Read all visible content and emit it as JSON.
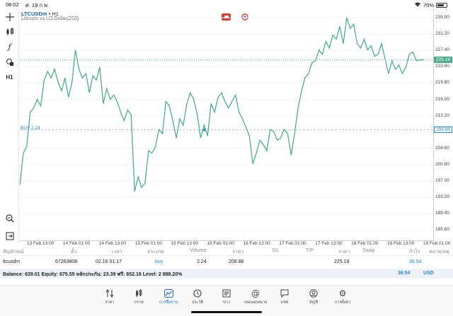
{
  "status_bar": {
    "time": "08:02",
    "date": "ศ. 19 ก.พ.",
    "battery": "70%"
  },
  "symbol": {
    "name": "LTCUSDm",
    "timeframe": "• H1",
    "description": "Litecoin vs US Dollar(250)"
  },
  "toolbar": {
    "sell_icon": "sell-button-icon",
    "buy_icon": "buy-button-icon"
  },
  "sidebar_icons": [
    "crosshair-icon",
    "chart-type-icon",
    "indicator-f-icon",
    "objects-icon",
    "timeframe-H1-label",
    "zoom-icon",
    "export-icon"
  ],
  "sidebar_timeframe": "H1",
  "chart_data": {
    "type": "line",
    "title": "",
    "y_ticks": [
      "235.00",
      "231.20",
      "227.40",
      "223.60",
      "219.80",
      "216.00",
      "212.20",
      "208.40",
      "204.60",
      "200.80",
      "197.00",
      "193.20",
      "189.40",
      "185.60"
    ],
    "x_ticks": [
      "13 Feb 13:00",
      "14 Feb 01:00",
      "14 Feb 13:00",
      "15 Feb 01:00",
      "15 Feb 13:00",
      "16 Feb 01:00",
      "16 Feb 13:00",
      "17 Feb 01:00",
      "17 Feb 13:00",
      "18 Feb 01:00",
      "18 Feb 13:00",
      "19 Feb 01:00"
    ],
    "current_price": "225.19",
    "open_price": "208.88",
    "buy_line_label": "BUY 2.24",
    "ylim": [
      183.0,
      237.0
    ],
    "line_color": "#4caf8a",
    "values": [
      196.0,
      203.5,
      205.0,
      213.0,
      214.0,
      216.0,
      214.5,
      220.5,
      222.5,
      221.0,
      223.0,
      220.0,
      218.0,
      221.0,
      216.5,
      220.0,
      227.5,
      223.0,
      221.0,
      222.0,
      217.5,
      221.5,
      220.5,
      223.5,
      215.0,
      218.5,
      216.0,
      217.0,
      215.5,
      213.0,
      211.0,
      213.5,
      212.5,
      194.5,
      198.0,
      195.5,
      196.5,
      204.0,
      203.5,
      205.0,
      209.0,
      208.0,
      215.5,
      214.5,
      211.0,
      207.0,
      211.5,
      210.0,
      215.0,
      217.5,
      216.0,
      212.5,
      207.0,
      210.0,
      207.5,
      215.0,
      213.0,
      216.5,
      217.5,
      215.5,
      214.0,
      215.5,
      217.0,
      213.0,
      211.5,
      209.5,
      207.5,
      201.0,
      203.5,
      206.5,
      205.5,
      204.0,
      209.0,
      208.5,
      206.5,
      207.0,
      209.0,
      208.0,
      203.0,
      208.0,
      214.0,
      218.0,
      221.0,
      222.0,
      224.5,
      225.0,
      227.5,
      226.5,
      229.5,
      228.0,
      231.0,
      230.0,
      233.0,
      229.0,
      235.0,
      232.5,
      233.5,
      229.0,
      228.0,
      230.0,
      227.5,
      228.5,
      226.0,
      226.5,
      229.0,
      225.5,
      222.0,
      225.0,
      223.0,
      224.0,
      222.0,
      223.5,
      226.5,
      227.0,
      225.0,
      225.2,
      225.19
    ]
  },
  "positions_table": {
    "headers": [
      "สัญลักษณ์",
      "ตั๋ว",
      "เวลา",
      "ประเภท",
      "Volume",
      "ราคา",
      "S/L",
      "T/P",
      "ราคา",
      "Swap",
      "กำไร",
      "หมายเหตุ"
    ],
    "rows": [
      {
        "symbol": "ltcusdm",
        "ticket": "67263808",
        "time": "02.16 01:17",
        "type": "buy",
        "volume": "2.24",
        "price": "208.88",
        "sl": "",
        "tp": "",
        "current": "225.19",
        "swap": "",
        "profit": "36.54",
        "comment": ""
      }
    ]
  },
  "balance_bar": {
    "text": "Balance: 639.01 Equity: 675.55 หลักประกัน: 23.39 ฟรี: 652.16 Level: 2 888.20%",
    "total": "36.54",
    "currency": "USD"
  },
  "tabs": [
    {
      "label": "ราคา",
      "icon": "quotes-icon"
    },
    {
      "label": "กราฟ",
      "icon": "candles-icon"
    },
    {
      "label": "การซื้อขาย",
      "icon": "trade-chart-icon",
      "active": true
    },
    {
      "label": "ประวัติ",
      "icon": "history-icon"
    },
    {
      "label": "ข่าว",
      "icon": "news-icon"
    },
    {
      "label": "กล่องจดหมาย",
      "icon": "mailbox-icon"
    },
    {
      "label": "แชท",
      "icon": "chat-icon"
    },
    {
      "label": "บัญชี",
      "icon": "account-icon"
    },
    {
      "label": "การตั้งค่า",
      "icon": "settings-icon"
    }
  ],
  "colors": {
    "accent": "#1e6fd9",
    "line": "#4caf8a",
    "price_tag": "#4caf8a",
    "buy_tag": "#1e88e5"
  }
}
